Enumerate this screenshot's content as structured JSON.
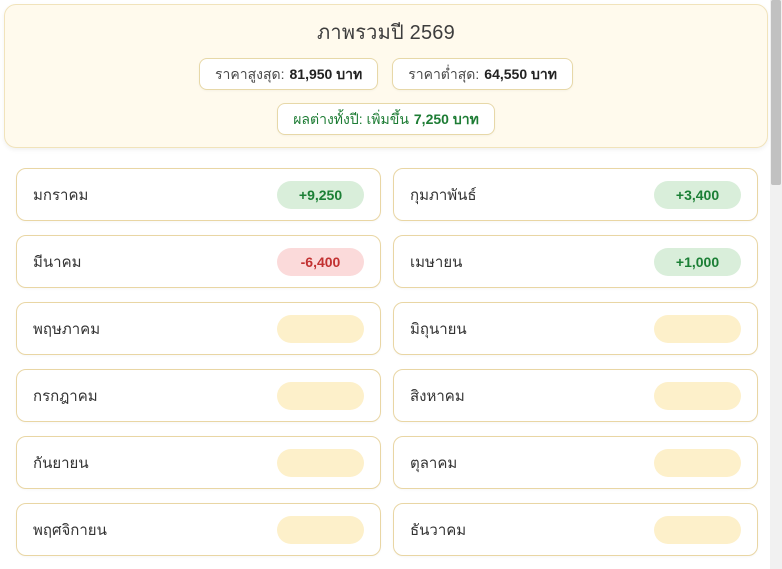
{
  "header": {
    "title": "ภาพรวมปี 2569",
    "stats": [
      {
        "label": "ราคาสูงสุด:",
        "value": "81,950 บาท"
      },
      {
        "label": "ราคาต่ำสุด:",
        "value": "64,550 บาท"
      }
    ],
    "difference": {
      "label": "ผลต่างทั้งปี: เพิ่มขึ้น",
      "value": "7,250 บาท"
    }
  },
  "months": [
    {
      "name": "มกราคม",
      "change": "+9,250",
      "status": "positive"
    },
    {
      "name": "กุมภาพันธ์",
      "change": "+3,400",
      "status": "positive"
    },
    {
      "name": "มีนาคม",
      "change": "-6,400",
      "status": "negative"
    },
    {
      "name": "เมษายน",
      "change": "+1,000",
      "status": "positive"
    },
    {
      "name": "พฤษภาคม",
      "change": "",
      "status": "pending"
    },
    {
      "name": "มิถุนายน",
      "change": "",
      "status": "pending"
    },
    {
      "name": "กรกฎาคม",
      "change": "",
      "status": "pending"
    },
    {
      "name": "สิงหาคม",
      "change": "",
      "status": "pending"
    },
    {
      "name": "กันยายน",
      "change": "",
      "status": "pending"
    },
    {
      "name": "ตุลาคม",
      "change": "",
      "status": "pending"
    },
    {
      "name": "พฤศจิกายน",
      "change": "",
      "status": "pending"
    },
    {
      "name": "ธันวาคม",
      "change": "",
      "status": "pending"
    }
  ],
  "colors": {
    "header_card_bg": "#fffaed",
    "card_border": "#e9d6a4",
    "positive_bg": "#d9eeda",
    "positive_text": "#1b7f35",
    "negative_bg": "#fbdada",
    "negative_text": "#c23131",
    "pending_bg": "#fdf0ca",
    "diff_text": "#1d7c34"
  }
}
